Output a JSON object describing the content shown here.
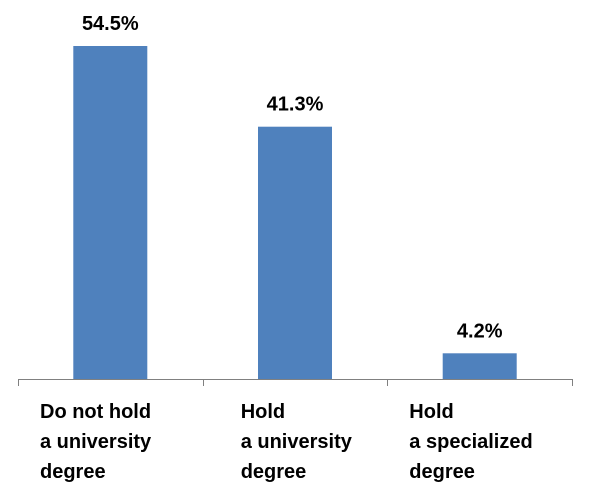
{
  "chart_data": {
    "type": "bar",
    "categories": [
      [
        "Do not hold",
        "a university",
        "degree"
      ],
      [
        "Hold",
        "a university",
        "degree"
      ],
      [
        "Hold",
        "a specialized",
        "degree"
      ]
    ],
    "values": [
      54.5,
      41.3,
      4.2
    ],
    "data_labels": [
      "54.5%",
      "41.3%",
      "4.2%"
    ],
    "title": "",
    "xlabel": "",
    "ylabel": "",
    "ylim": [
      0,
      60
    ],
    "grid": false,
    "legend": "none",
    "colors": {
      "bar": "#4F81BD",
      "axis": "#808080",
      "text": "#000000"
    }
  }
}
